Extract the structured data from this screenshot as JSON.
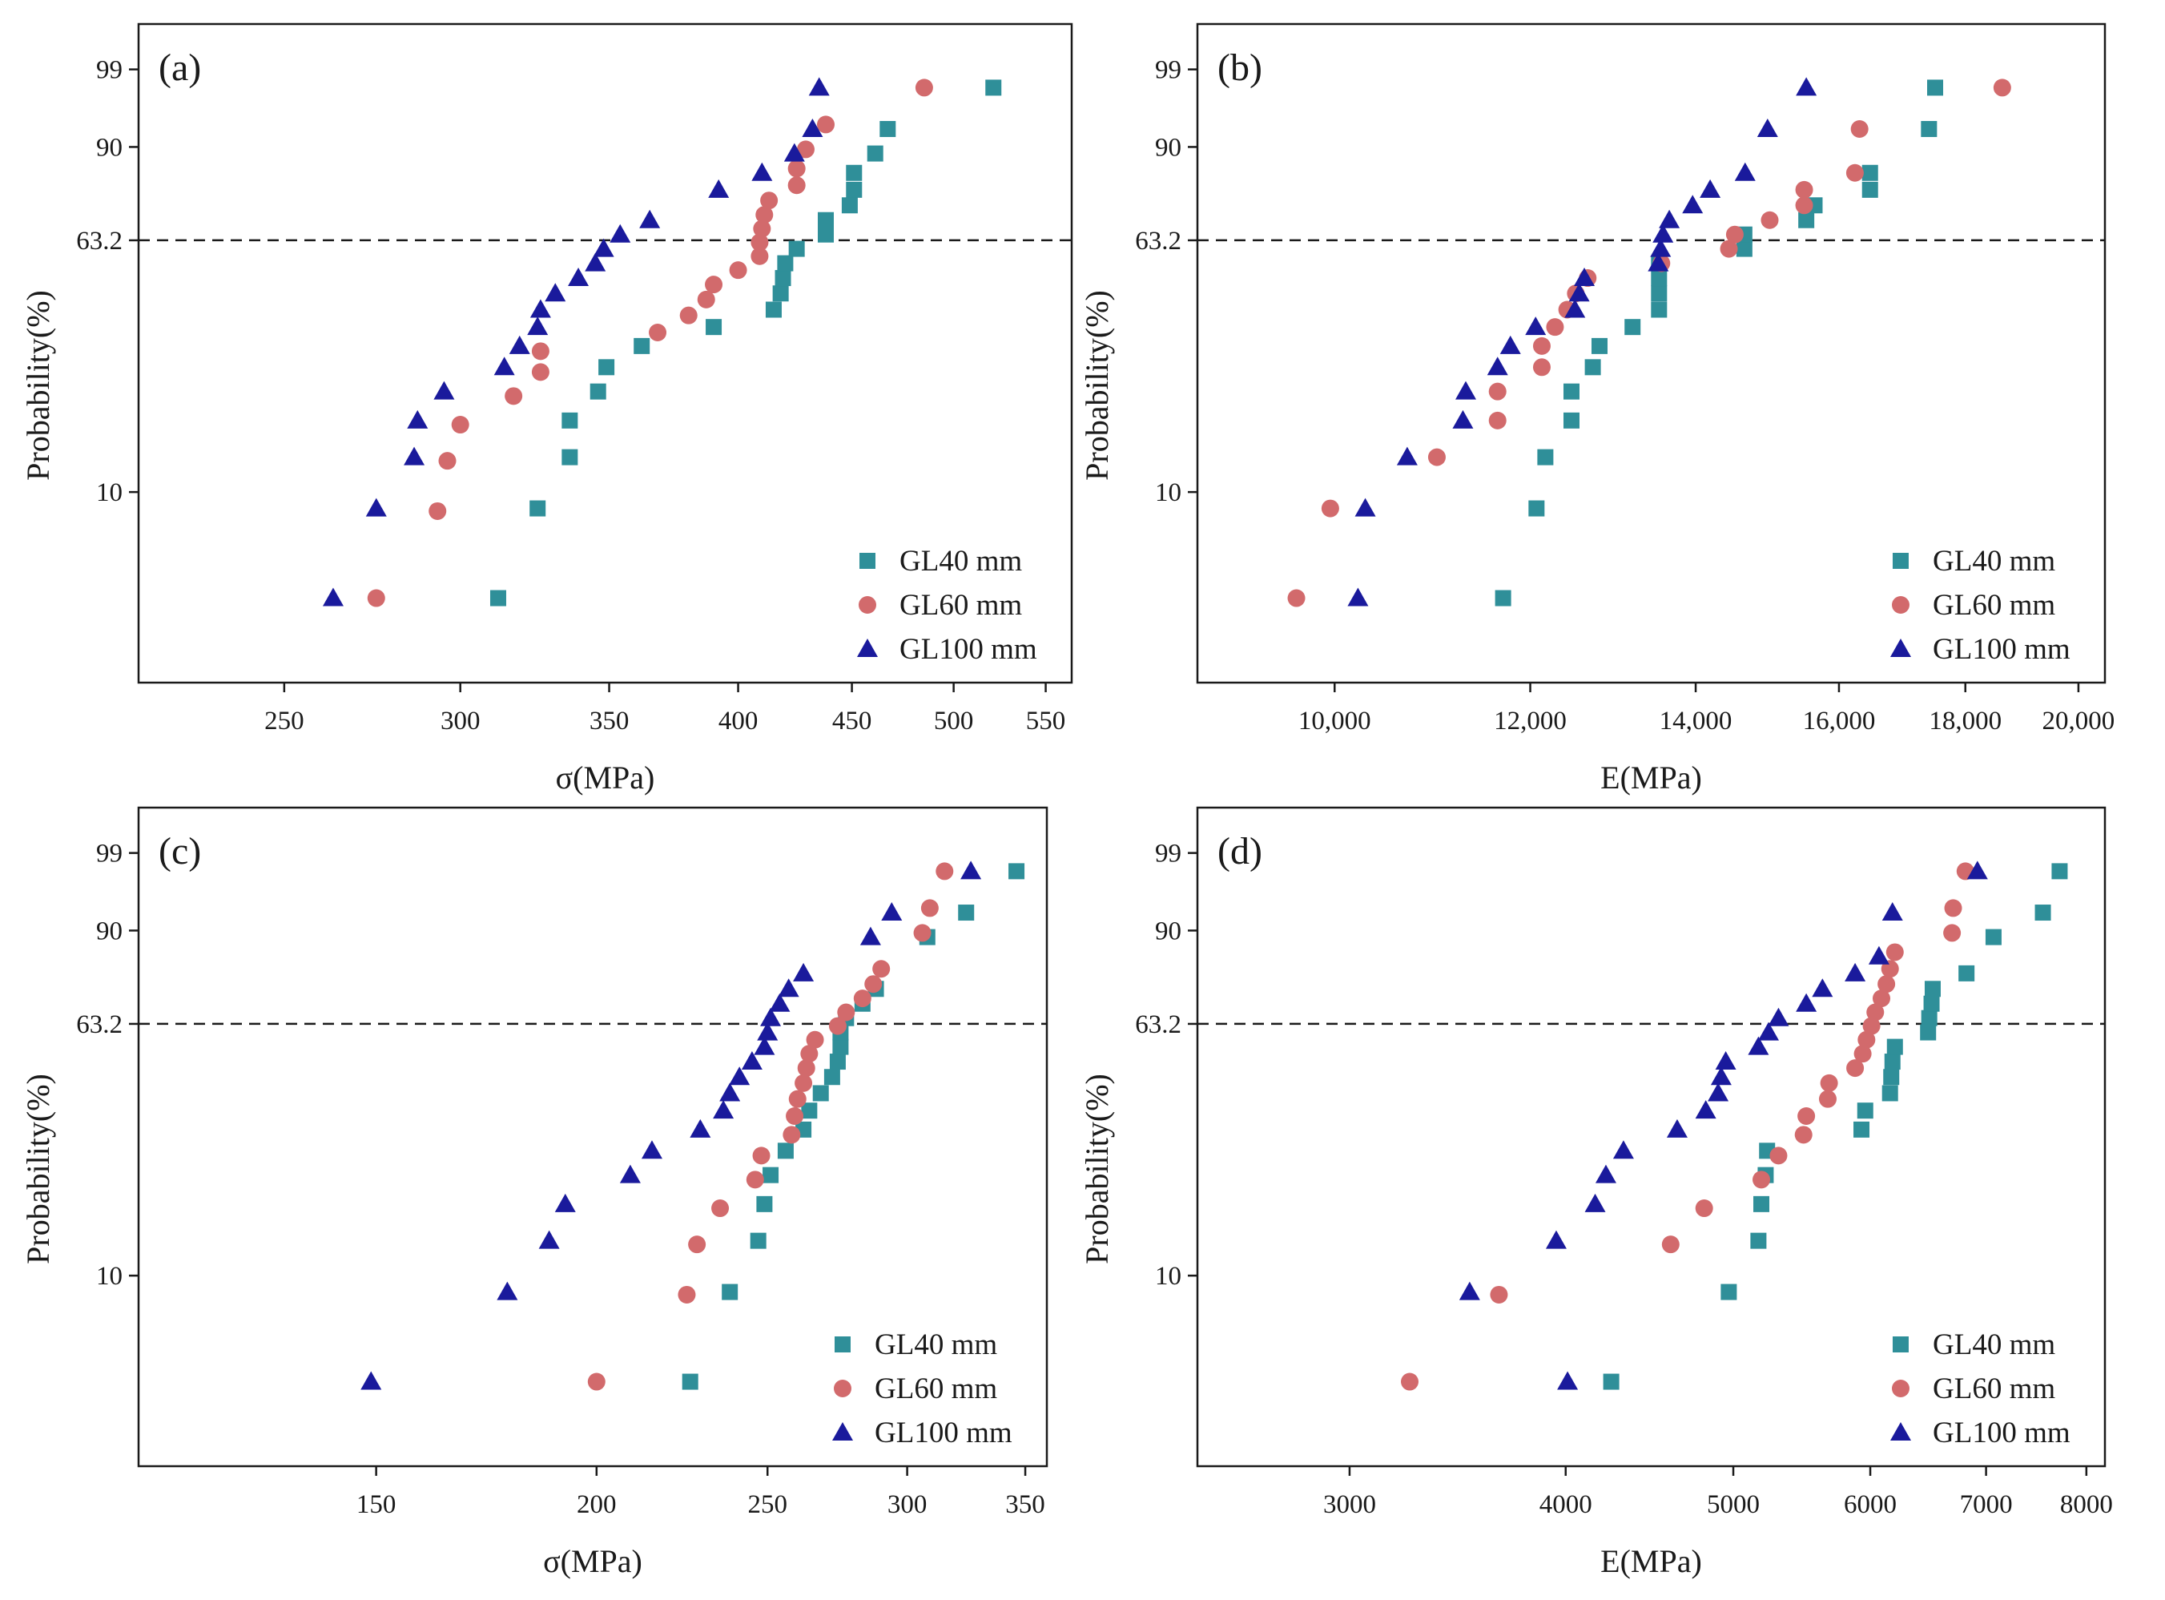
{
  "colors": {
    "gl40": "#2f8f99",
    "gl60": "#d26a6c",
    "gl100": "#1a1a9c",
    "axis": "#1a1a1a",
    "refline": "#1a1a1a"
  },
  "chart_data": [
    {
      "type": "scatter",
      "panel_label": "(a)",
      "xlabel": "σ(MPa)",
      "ylabel": "Probability(%)",
      "xlim": [
        215,
        565
      ],
      "x_ticks": [
        250,
        300,
        350,
        400,
        450,
        500,
        550
      ],
      "x_tick_labels": [
        "250",
        "300",
        "350",
        "400",
        "450",
        "500",
        "550"
      ],
      "ylim": [
        1.9,
        99.9
      ],
      "y_ticks": [
        10,
        63.2,
        90,
        99
      ],
      "y_tick_labels": [
        "10",
        "63.2",
        "90",
        "99"
      ],
      "reference_line": {
        "y": 63.2,
        "style": "dashed"
      },
      "legend_position": "bottom-right",
      "series": [
        {
          "name": "GL40 mm",
          "marker": "square",
          "x": [
            312,
            325,
            336,
            336,
            346,
            349,
            362,
            390,
            415,
            418,
            419,
            420,
            425,
            438,
            438,
            449,
            451,
            451,
            461,
            467,
            521
          ],
          "y": [
            4,
            8.7,
            13.4,
            18.1,
            22.8,
            27.5,
            32.2,
            36.9,
            41.6,
            46.3,
            51,
            55.7,
            60.4,
            65.1,
            69.8,
            74.5,
            79.2,
            83.9,
            88.6,
            93.3,
            98
          ]
        },
        {
          "name": "GL60 mm",
          "marker": "circle",
          "x": [
            275,
            293,
            296,
            300,
            317,
            326,
            326,
            368,
            380,
            387,
            390,
            400,
            409,
            409,
            410,
            411,
            413,
            425,
            425,
            429,
            438,
            485
          ],
          "y": [
            4,
            8.5,
            13,
            17.5,
            22,
            26.5,
            31,
            35.5,
            40,
            44.5,
            49,
            53.5,
            58,
            62.5,
            67,
            71.5,
            76,
            80.5,
            85,
            89.5,
            94,
            98
          ]
        },
        {
          "name": "GL100 mm",
          "marker": "triangle",
          "x": [
            263,
            275,
            286,
            287,
            295,
            314,
            319,
            325,
            326,
            331,
            339,
            345,
            348,
            354,
            365,
            392,
            410,
            424,
            432,
            435
          ],
          "y": [
            4,
            8.7,
            13.4,
            18.1,
            22.8,
            27.5,
            32.2,
            36.9,
            41.6,
            46.3,
            51,
            55.7,
            60.4,
            65.1,
            69.8,
            79.2,
            83.9,
            88.6,
            93.3,
            98
          ]
        }
      ]
    },
    {
      "type": "scatter",
      "panel_label": "(b)",
      "xlabel": "E(MPa)",
      "ylabel": "Probability(%)",
      "xlim": [
        8800,
        20500
      ],
      "x_ticks": [
        10000,
        12000,
        14000,
        16000,
        18000,
        20000
      ],
      "x_tick_labels": [
        "10,000",
        "12,000",
        "14,000",
        "16,000",
        "18,000",
        "20,000"
      ],
      "ylim": [
        1.9,
        99.9
      ],
      "y_ticks": [
        10,
        63.2,
        90,
        99
      ],
      "y_tick_labels": [
        "10",
        "63.2",
        "90",
        "99"
      ],
      "reference_line": {
        "y": 63.2,
        "style": "dashed"
      },
      "legend_position": "bottom-right",
      "series": [
        {
          "name": "GL40 mm",
          "marker": "square",
          "x": [
            11700,
            12070,
            12170,
            12470,
            12470,
            12720,
            12800,
            13200,
            13530,
            13530,
            13530,
            13530,
            14650,
            14650,
            15520,
            15640,
            16470,
            16470,
            17400,
            17500
          ],
          "y": [
            4,
            8.7,
            13.4,
            18.1,
            22.8,
            27.5,
            32.2,
            36.9,
            41.6,
            46.3,
            51,
            55.7,
            60.4,
            65.1,
            69.8,
            74.5,
            79.2,
            83.9,
            93.3,
            98
          ]
        },
        {
          "name": "GL60 mm",
          "marker": "circle",
          "x": [
            9650,
            9960,
            11000,
            11640,
            11640,
            12130,
            12130,
            12280,
            12420,
            12520,
            12660,
            13560,
            14440,
            14520,
            15000,
            15490,
            15490,
            16240,
            16310,
            18630
          ],
          "y": [
            4,
            8.7,
            13.4,
            18.1,
            22.8,
            27.5,
            32.2,
            36.9,
            41.6,
            46.3,
            51,
            55.7,
            60.4,
            65.1,
            69.8,
            74.5,
            79.2,
            83.9,
            93.3,
            98
          ]
        },
        {
          "name": "GL100 mm",
          "marker": "triangle",
          "x": [
            10220,
            10290,
            10700,
            11270,
            11300,
            11640,
            11780,
            12060,
            12510,
            12560,
            12620,
            13520,
            13550,
            13580,
            13660,
            13960,
            14190,
            14660,
            14970,
            15520
          ],
          "y": [
            4,
            8.7,
            13.4,
            18.1,
            22.8,
            27.5,
            32.2,
            36.9,
            41.6,
            46.3,
            51,
            55.7,
            60.4,
            65.1,
            69.8,
            74.5,
            79.2,
            83.9,
            93.3,
            98
          ]
        }
      ]
    },
    {
      "type": "scatter",
      "panel_label": "(c)",
      "xlabel": "σ(MPa)",
      "ylabel": "Probability(%)",
      "xlim": [
        110,
        360
      ],
      "x_ticks": [
        150,
        200,
        250,
        300,
        350
      ],
      "x_tick_labels": [
        "150",
        "200",
        "250",
        "300",
        "350"
      ],
      "ylim": [
        1.9,
        99.9
      ],
      "y_ticks": [
        10,
        63.2,
        90,
        99
      ],
      "y_tick_labels": [
        "10",
        "63.2",
        "90",
        "99"
      ],
      "reference_line": {
        "y": 63.2,
        "style": "dashed"
      },
      "legend_position": "bottom-right",
      "series": [
        {
          "name": "GL40 mm",
          "marker": "square",
          "x": [
            226,
            238,
            247,
            249,
            251,
            256,
            262,
            264,
            268,
            272,
            274,
            275,
            275,
            277,
            283,
            288,
            308,
            324,
            346
          ],
          "y": [
            4,
            8.7,
            13.4,
            18.1,
            22.8,
            27.5,
            32.2,
            36.9,
            41.6,
            46.3,
            51,
            55.7,
            60.4,
            65.1,
            69.8,
            74.5,
            88.6,
            93.3,
            98
          ]
        },
        {
          "name": "GL60 mm",
          "marker": "circle",
          "x": [
            200,
            225,
            228,
            235,
            246,
            248,
            258,
            259,
            260,
            262,
            263,
            264,
            266,
            274,
            277,
            283,
            287,
            290,
            306,
            309,
            315
          ],
          "y": [
            4,
            8.5,
            13,
            17.5,
            22,
            26.5,
            31,
            35.5,
            40,
            44.5,
            49,
            53.5,
            58,
            62.5,
            67,
            71.5,
            76,
            80.5,
            89.5,
            94,
            98
          ]
        },
        {
          "name": "GL100 mm",
          "marker": "triangle",
          "x": [
            149,
            178,
            188,
            192,
            209,
            215,
            229,
            236,
            238,
            241,
            245,
            249,
            250,
            251,
            254,
            257,
            262,
            286,
            294,
            326
          ],
          "y": [
            4,
            8.7,
            13.4,
            18.1,
            22.8,
            27.5,
            32.2,
            36.9,
            41.6,
            46.3,
            51,
            55.7,
            60.4,
            65.1,
            69.8,
            74.5,
            79.2,
            88.6,
            93.3,
            98
          ]
        }
      ]
    },
    {
      "type": "scatter",
      "panel_label": "(d)",
      "xlabel": "E(MPa)",
      "ylabel": "Probability(%)",
      "xlim": [
        2450,
        8200
      ],
      "x_ticks": [
        3000,
        4000,
        5000,
        6000,
        7000,
        8000
      ],
      "x_tick_labels": [
        "3000",
        "4000",
        "5000",
        "6000",
        "7000",
        "8000"
      ],
      "ylim": [
        1.9,
        99.9
      ],
      "y_ticks": [
        10,
        63.2,
        90,
        99
      ],
      "y_tick_labels": [
        "10",
        "63.2",
        "90",
        "99"
      ],
      "reference_line": {
        "y": 63.2,
        "style": "dashed"
      },
      "legend_position": "bottom-right",
      "series": [
        {
          "name": "GL40 mm",
          "marker": "square",
          "x": [
            4250,
            4970,
            5170,
            5190,
            5220,
            5230,
            5930,
            5960,
            6160,
            6170,
            6180,
            6200,
            6480,
            6490,
            6510,
            6520,
            6820,
            7070,
            7550,
            7720
          ],
          "y": [
            4,
            8.7,
            13.4,
            18.1,
            22.8,
            27.5,
            32.2,
            36.9,
            41.6,
            46.3,
            51,
            55.7,
            60.4,
            65.1,
            69.8,
            74.5,
            79.2,
            88.6,
            93.3,
            98
          ]
        },
        {
          "name": "GL60 mm",
          "marker": "circle",
          "x": [
            3250,
            3660,
            4600,
            4810,
            5190,
            5310,
            5490,
            5510,
            5670,
            5680,
            5880,
            5940,
            5970,
            6010,
            6040,
            6090,
            6130,
            6160,
            6200,
            6690,
            6700,
            6810
          ],
          "y": [
            4,
            8.5,
            13,
            17.5,
            22,
            26.5,
            31,
            35.5,
            40,
            44.5,
            49,
            53.5,
            58,
            62.5,
            67,
            71.5,
            76,
            80.5,
            85,
            89.5,
            94,
            98
          ]
        },
        {
          "name": "GL100 mm",
          "marker": "triangle",
          "x": [
            4010,
            3520,
            3950,
            4160,
            4220,
            4320,
            4640,
            4820,
            4900,
            4920,
            4950,
            5170,
            5240,
            5310,
            5510,
            5630,
            5880,
            6070,
            6180,
            6920
          ],
          "y": [
            4,
            8.7,
            13.4,
            18.1,
            22.8,
            27.5,
            32.2,
            36.9,
            41.6,
            46.3,
            51,
            55.7,
            60.4,
            65.1,
            69.8,
            74.5,
            79.2,
            83.9,
            93.3,
            98
          ]
        }
      ]
    }
  ]
}
